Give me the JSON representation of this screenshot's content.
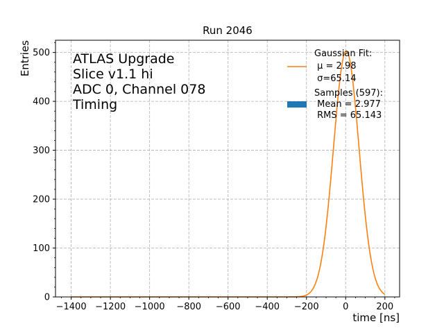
{
  "chart_data": {
    "type": "line",
    "title": "Run 2046",
    "xlabel": "time [ns]",
    "ylabel": "Entries",
    "xlim": [
      -1480,
      275
    ],
    "ylim": [
      0,
      525
    ],
    "x_ticks": [
      -1400,
      -1200,
      -1000,
      -800,
      -600,
      -400,
      -200,
      0,
      200
    ],
    "x_tick_labels": [
      "−1400",
      "−1200",
      "−1000",
      "−800",
      "−600",
      "−400",
      "−200",
      "0",
      "200"
    ],
    "y_ticks": [
      0,
      100,
      200,
      300,
      400,
      500
    ],
    "y_tick_labels": [
      "0",
      "100",
      "200",
      "300",
      "400",
      "500"
    ],
    "grid": true,
    "annotation_lines": [
      "ATLAS Upgrade",
      "Slice v1.1 hi",
      "ADC 0, Channel 078",
      "Timing"
    ],
    "series": [
      {
        "name": "Gaussian Fit",
        "kind": "line",
        "color": "#ff7f0e",
        "fit": {
          "mu": 2.98,
          "sigma": 65.14,
          "amplitude": 503
        },
        "x_range": [
          -1400,
          200
        ]
      },
      {
        "name": "Samples",
        "kind": "histogram",
        "color": "#1f77b4",
        "count": 597,
        "mean": 2.977,
        "rms": 65.143
      }
    ],
    "legend": {
      "position": "top-right",
      "entries": [
        {
          "color": "#ff7f0e",
          "marker": "line",
          "lines": [
            "Gaussian Fit:",
            " μ = 2.98",
            " σ=65.14"
          ]
        },
        {
          "color": "#1f77b4",
          "marker": "patch",
          "lines": [
            "Samples (597):",
            " Mean = 2.977",
            " RMS = 65.143"
          ]
        }
      ]
    }
  }
}
